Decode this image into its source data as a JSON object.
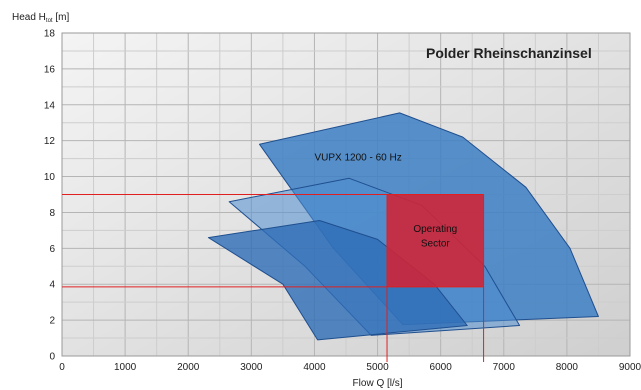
{
  "chart_data": {
    "type": "area",
    "title": "Polder Rheinschanzinsel",
    "xlabel": "Flow Q [l/s]",
    "ylabel_main": "Head H",
    "ylabel_sub": "tot",
    "ylabel_unit": " [m]",
    "xlim": [
      0,
      9000
    ],
    "ylim": [
      0,
      18
    ],
    "x_ticks": [
      "0",
      "1000",
      "2000",
      "3000",
      "4000",
      "5000",
      "6000",
      "7000",
      "8000",
      "9000"
    ],
    "y_ticks": [
      "0",
      "2",
      "4",
      "6",
      "8",
      "10",
      "12",
      "14",
      "16",
      "18"
    ],
    "grid": true,
    "areas": [
      {
        "label": "VUPX 1200  -  60 Hz",
        "color": "#3d7fc4",
        "points": [
          [
            3130,
            11.8
          ],
          [
            5350,
            13.55
          ],
          [
            6350,
            12.2
          ],
          [
            7350,
            9.4
          ],
          [
            8050,
            6.0
          ],
          [
            8500,
            2.2
          ],
          [
            5400,
            1.75
          ],
          [
            4300,
            6.0
          ]
        ]
      },
      {
        "label": "",
        "color": "#4e8ed0",
        "points": [
          [
            2650,
            8.6
          ],
          [
            4550,
            9.9
          ],
          [
            5700,
            8.4
          ],
          [
            6700,
            5.0
          ],
          [
            7250,
            1.7
          ],
          [
            4900,
            1.15
          ],
          [
            3850,
            5.0
          ]
        ]
      },
      {
        "label": "",
        "color": "#2e6db6",
        "points": [
          [
            2320,
            6.6
          ],
          [
            4080,
            7.55
          ],
          [
            5000,
            6.5
          ],
          [
            5900,
            4.0
          ],
          [
            6420,
            1.7
          ],
          [
            4050,
            0.9
          ],
          [
            3500,
            4.0
          ]
        ]
      }
    ],
    "operating_sector": {
      "label_line1": "Operating",
      "label_line2": "Sector",
      "x": [
        5150,
        6680
      ],
      "y": [
        3.85,
        9.0
      ],
      "color": "#d12334"
    },
    "reference_lines": {
      "h": [
        9.0,
        3.85
      ],
      "v": [
        5150,
        6680
      ],
      "color": "#e02020"
    }
  }
}
